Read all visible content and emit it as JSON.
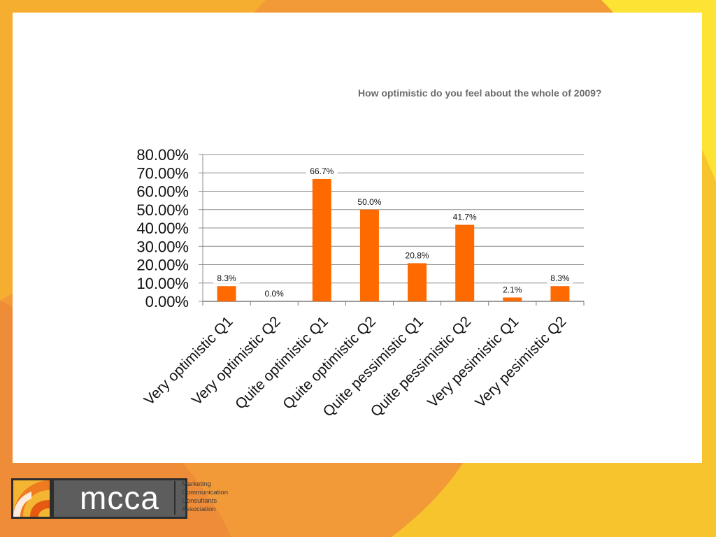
{
  "colors": {
    "background_orange": "#f29a38",
    "background_yellow": "#f7c42e",
    "bar": "#ff6a00",
    "title": "#6b6b6b",
    "grid": "#8c8c8c"
  },
  "slide": {
    "title": "How optimistic do you feel about the whole of 2009?"
  },
  "chart_data": {
    "type": "bar",
    "title": "How optimistic do you feel about the whole of 2009?",
    "xlabel": "",
    "ylabel": "",
    "ylim": [
      0,
      80
    ],
    "yticks": [
      "0.00%",
      "10.00%",
      "20.00%",
      "30.00%",
      "40.00%",
      "50.00%",
      "60.00%",
      "70.00%",
      "80.00%"
    ],
    "grid": true,
    "legend": "none",
    "categories": [
      "Very optimistic Q1",
      "Very optimistic Q2",
      "Quite optimistic Q1",
      "Quite optimistic Q2",
      "Quite pessimistic Q1",
      "Quite pessimistic Q2",
      "Very pesimistic Q1",
      "Very pesimistic Q2"
    ],
    "values": [
      8.3,
      0.0,
      66.7,
      50.0,
      20.8,
      41.7,
      2.1,
      8.3
    ],
    "data_labels": [
      "8.3%",
      "0.0%",
      "66.7%",
      "50.0%",
      "20.8%",
      "41.7%",
      "2.1%",
      "8.3%"
    ]
  },
  "logo": {
    "wordmark": "mcca",
    "tagline": [
      "Marketing",
      "Communication",
      "Consultants",
      "Association"
    ],
    "icon": "mcca-logo-mark"
  }
}
